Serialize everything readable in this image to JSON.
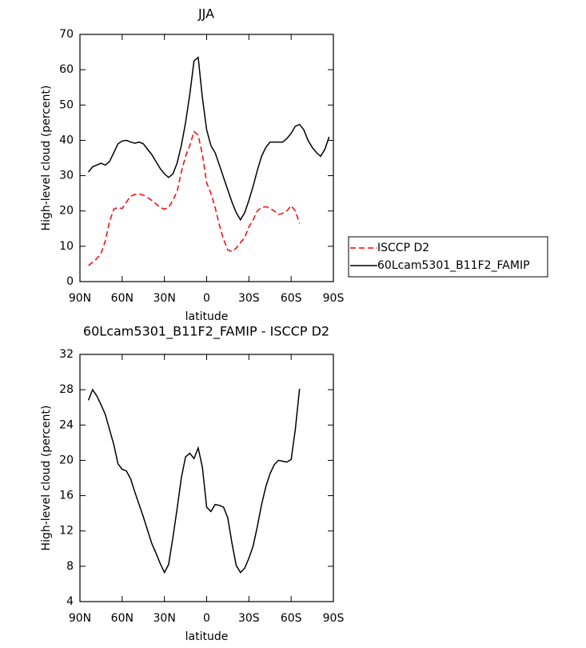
{
  "chart_data": [
    {
      "type": "line",
      "title": "JJA",
      "x_label": "latitude",
      "y_label": "High-level cloud (percent)",
      "x": [
        84,
        81,
        78,
        75,
        72,
        69,
        66,
        63,
        60,
        57,
        54,
        51,
        48,
        45,
        42,
        39,
        36,
        33,
        30,
        27,
        24,
        21,
        18,
        15,
        12,
        9,
        6,
        3,
        0,
        -3,
        -6,
        -9,
        -12,
        -15,
        -18,
        -21,
        -24,
        -27,
        -30,
        -33,
        -36,
        -39,
        -42,
        -45,
        -48,
        -51,
        -54,
        -57,
        -60,
        -63,
        -66,
        -69,
        -72,
        -75,
        -78,
        -81,
        -84,
        -87
      ],
      "xlim": [
        90,
        -90
      ],
      "xticks": [
        {
          "value": 90,
          "label": "90N"
        },
        {
          "value": 60,
          "label": "60N"
        },
        {
          "value": 30,
          "label": "30N"
        },
        0,
        {
          "value": -30,
          "label": "30S"
        },
        {
          "value": -60,
          "label": "60S"
        },
        {
          "value": -90,
          "label": "90S"
        }
      ],
      "ylim": [
        0,
        70
      ],
      "yticks": [
        0,
        10,
        20,
        30,
        40,
        50,
        60,
        70
      ],
      "legend": "right",
      "series": [
        {
          "name": "ISCCP D2",
          "color": "#ff0000",
          "dash": "dashed",
          "values": [
            4.5,
            5.5,
            6.5,
            8,
            11.5,
            17,
            20.5,
            21,
            20.7,
            22.5,
            24.2,
            24.7,
            24.8,
            24.5,
            23.8,
            23,
            22,
            21,
            20.5,
            21,
            23,
            25.5,
            31,
            35.5,
            38.5,
            42.5,
            41.5,
            36,
            28,
            25,
            21,
            16,
            12,
            9,
            8.5,
            9.5,
            11,
            12.5,
            15.5,
            17.5,
            20,
            21,
            21.2,
            20.8,
            20,
            19,
            19.3,
            20,
            21.5,
            20,
            16.5,
            null,
            null,
            null,
            null,
            null,
            null,
            null
          ]
        },
        {
          "name": "60Lcam5301_B11F2_FAMIP",
          "color": "#000000",
          "dash": "solid",
          "values": [
            31,
            32.5,
            33,
            33.5,
            33,
            34,
            36.5,
            39,
            39.8,
            40,
            39.5,
            39.2,
            39.5,
            39,
            37.5,
            36,
            34,
            32,
            30.5,
            29.5,
            30.5,
            33.5,
            38.5,
            45,
            53,
            62.5,
            63.5,
            52,
            43,
            38.5,
            36.5,
            33,
            29.5,
            26,
            22.5,
            19.5,
            17.5,
            19.5,
            23,
            27,
            31.5,
            35.5,
            38,
            39.5,
            39.5,
            39.5,
            39.5,
            40.5,
            42,
            44,
            44.5,
            43,
            40,
            38,
            36.5,
            35.5,
            37.5,
            41
          ]
        }
      ]
    },
    {
      "type": "line",
      "title": "60Lcam5301_B11F2_FAMIP - ISCCP D2",
      "x_label": "latitude",
      "y_label": "High-level cloud (percent)",
      "x": [
        84,
        81,
        78,
        75,
        72,
        69,
        66,
        63,
        60,
        57,
        54,
        51,
        48,
        45,
        42,
        39,
        36,
        33,
        30,
        27,
        24,
        21,
        18,
        15,
        12,
        9,
        6,
        3,
        0,
        -3,
        -6,
        -9,
        -12,
        -15,
        -18,
        -21,
        -24,
        -27,
        -30,
        -33,
        -36,
        -39,
        -42,
        -45,
        -48,
        -51,
        -54,
        -57,
        -60,
        -63,
        -66
      ],
      "xlim": [
        90,
        -90
      ],
      "xticks": [
        {
          "value": 90,
          "label": "90N"
        },
        {
          "value": 60,
          "label": "60N"
        },
        {
          "value": 30,
          "label": "30N"
        },
        0,
        {
          "value": -30,
          "label": "30S"
        },
        {
          "value": -60,
          "label": "60S"
        },
        {
          "value": -90,
          "label": "90S"
        }
      ],
      "ylim": [
        4,
        32
      ],
      "yticks": [
        4,
        8,
        12,
        16,
        20,
        24,
        28,
        32
      ],
      "series": [
        {
          "color": "#000000",
          "dash": "solid",
          "values": [
            26.8,
            28,
            27.3,
            26.3,
            25.2,
            23.5,
            21.8,
            19.6,
            19,
            18.8,
            17.9,
            16.4,
            15,
            13.6,
            12.1,
            10.6,
            9.5,
            8.3,
            7.3,
            8.2,
            11.2,
            14.5,
            18,
            20.4,
            20.8,
            20.2,
            21.4,
            19.2,
            14.7,
            14.2,
            15,
            14.9,
            14.7,
            13.5,
            10.6,
            8.1,
            7.3,
            7.8,
            8.9,
            10.3,
            12.5,
            15,
            17,
            18.5,
            19.5,
            20,
            19.9,
            19.8,
            20.1,
            23.5,
            28.1
          ]
        }
      ]
    }
  ]
}
